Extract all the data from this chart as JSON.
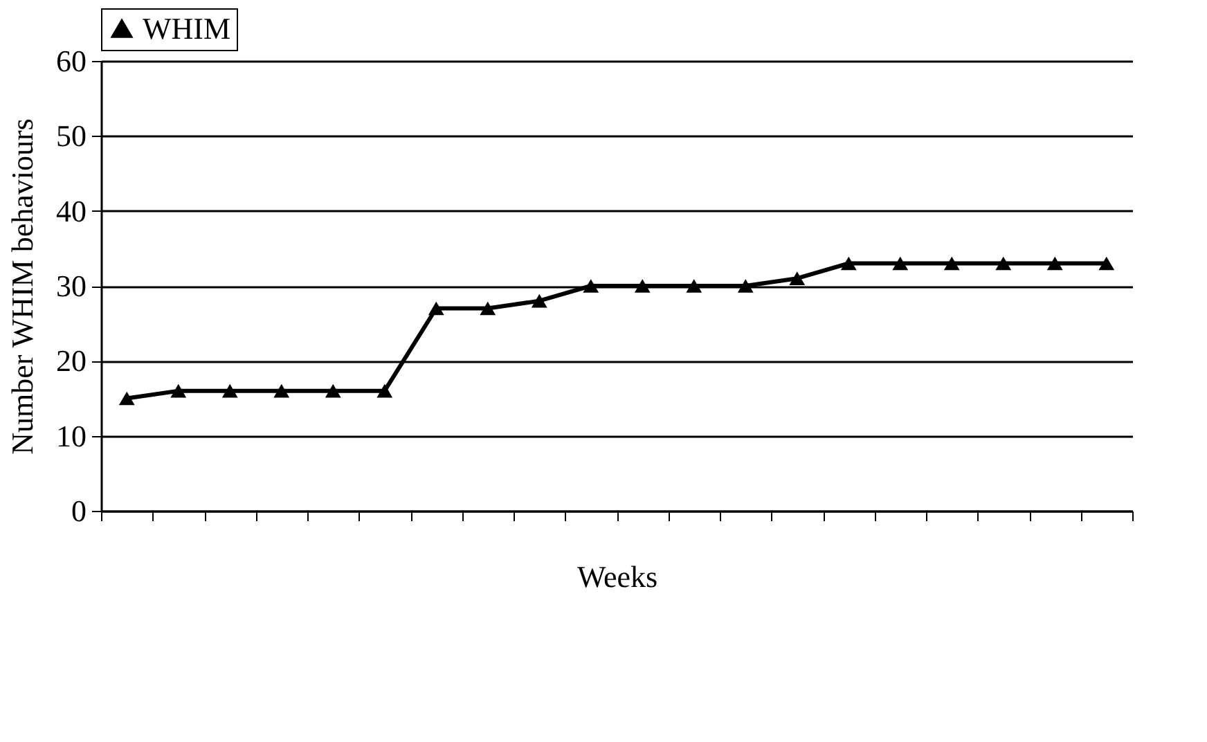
{
  "chart_data": {
    "type": "line",
    "xlabel": "Weeks",
    "ylabel": "Number WHIM behaviours",
    "categories": [
      null,
      null,
      null,
      null,
      null,
      null,
      null,
      null,
      null,
      null,
      null,
      null,
      null,
      null,
      null,
      null,
      null,
      null,
      null,
      null
    ],
    "series": [
      {
        "name": "WHIM",
        "color": "#000000",
        "values": [
          15,
          16,
          16,
          16,
          16,
          16,
          27,
          27,
          28,
          30,
          30,
          30,
          30,
          31,
          33,
          33,
          33,
          33,
          33,
          33
        ]
      }
    ],
    "ylim": [
      0,
      60
    ],
    "yticks": [
      0,
      10,
      20,
      30,
      40,
      50,
      60
    ],
    "grid": "y",
    "legend": "top",
    "tick_labels": "y",
    "marker": "triangle",
    "line_style": "solid"
  }
}
